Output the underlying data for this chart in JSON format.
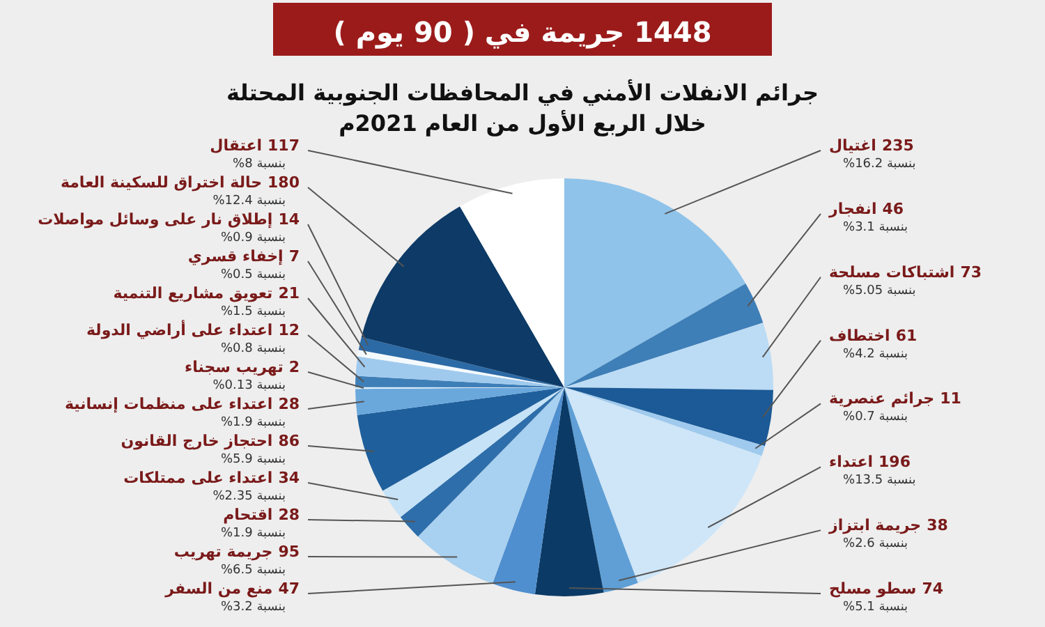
{
  "chart_data": {
    "type": "pie",
    "title": "1448 جريمة في ( 90 يوم )",
    "subtitle": "جرائم الانفلات الأمني في المحافظات الجنوبية المحتلة خلال الربع الأول من العام 2021م",
    "categories": [
      "اغتيال",
      "انفجار",
      "اشتباكات مسلحة",
      "اختطاف",
      "جرائم عنصرية",
      "اعتداء",
      "جريمة ابتزاز",
      "سطو مسلح",
      "منع من السفر",
      "جريمة تهريب",
      "اقتحام",
      "اعتداء على ممتلكات",
      "احتجاز خارج القانون",
      "اعتداء على منظمات إنسانية",
      "تهريب سجناء",
      "اعتداء على أراضي الدولة",
      "تعويق مشاريع التنمية",
      "إخفاء قسري",
      "إطلاق نار على وسائل مواصلات",
      "حالة اختراق للسكينة العامة",
      "اعتقال"
    ],
    "values": [
      235,
      46,
      73,
      61,
      11,
      196,
      38,
      74,
      47,
      95,
      28,
      34,
      86,
      28,
      2,
      12,
      21,
      7,
      14,
      180,
      117
    ],
    "colors": [
      "#8fc3ea",
      "#3f7fb8",
      "#bcdcf5",
      "#1b5a96",
      "#9fcaee",
      "#cfe6f8",
      "#5f9fd6",
      "#0b3a66",
      "#4f8fcf",
      "#a8d0f0",
      "#2e6eaa",
      "#c5e2f7",
      "#1f5f9c",
      "#6aa8dc",
      "#dff0fb",
      "#3f7fb8",
      "#9fcaee",
      "#f4f9fd",
      "#2c6aa6",
      "#0d3a66",
      "#ffffff"
    ],
    "data_labels": true,
    "annotations": [
      "بنسبة 16.2%",
      "بنسبة 3.1%",
      "بنسبة 5.05%",
      "بنسبة 4.2%",
      "بنسبة 0.7%",
      "بنسبة 13.5%",
      "بنسبة 2.6%",
      "بنسبة 5.1%",
      "بنسبة 3.2%",
      "بنسبة 6.5%",
      "بنسبة 1.9%",
      "بنسبة 2.35%",
      "بنسبة 5.9%",
      "بنسبة 1.9%",
      "بنسبة 0.13%",
      "بنسبة 0.8%",
      "بنسبة 1.5%",
      "بنسبة 0.5%",
      "بنسبة 0.9%",
      "بنسبة 12.4%",
      "بنسبة 8%"
    ]
  }
}
